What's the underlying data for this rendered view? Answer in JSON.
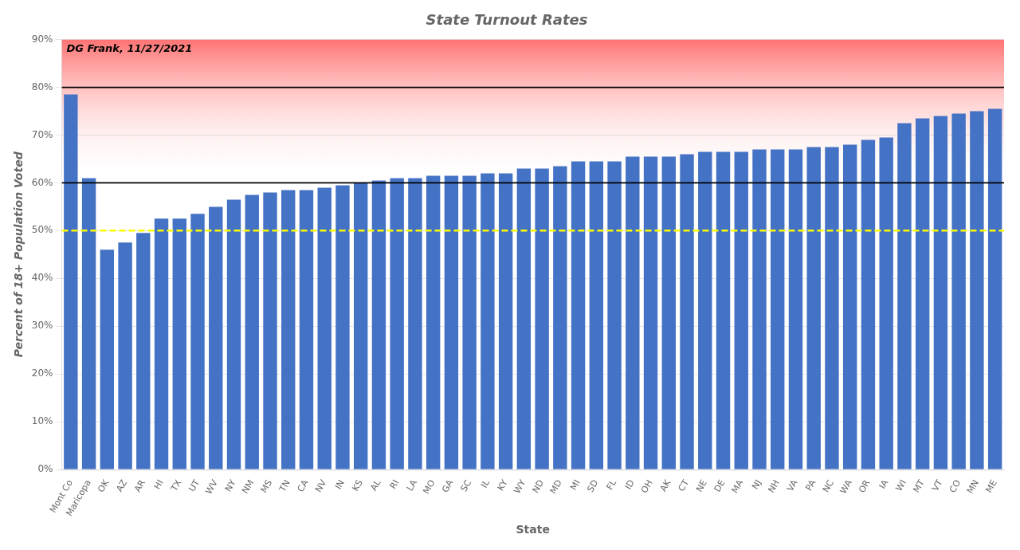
{
  "chart_data": {
    "type": "bar",
    "title": "State Turnout Rates",
    "xlabel": "State",
    "ylabel": "Percent of 18+ Population Voted",
    "annotation": "DG Frank, 11/27/2021",
    "categories": [
      "Mont Co",
      "Maricopa",
      "OK",
      "AZ",
      "AR",
      "HI",
      "TX",
      "UT",
      "WV",
      "NY",
      "NM",
      "MS",
      "TN",
      "CA",
      "NV",
      "IN",
      "KS",
      "AL",
      "RI",
      "LA",
      "MO",
      "GA",
      "SC",
      "IL",
      "KY",
      "WY",
      "ND",
      "MD",
      "MI",
      "SD",
      "FL",
      "ID",
      "OH",
      "AK",
      "CT",
      "NE",
      "DE",
      "MA",
      "NJ",
      "NH",
      "VA",
      "PA",
      "NC",
      "WA",
      "OR",
      "IA",
      "WI",
      "MT",
      "VT",
      "CO",
      "MN",
      "ME"
    ],
    "values": [
      78.5,
      61.0,
      46.0,
      47.5,
      49.5,
      52.5,
      52.5,
      53.5,
      55.0,
      56.5,
      57.5,
      58.0,
      58.5,
      58.5,
      59.0,
      59.5,
      60.0,
      60.5,
      61.0,
      61.0,
      61.5,
      61.5,
      61.5,
      62.0,
      62.0,
      63.0,
      63.0,
      63.5,
      64.5,
      64.5,
      64.5,
      65.5,
      65.5,
      65.5,
      66.0,
      66.5,
      66.5,
      66.5,
      67.0,
      67.0,
      67.0,
      67.5,
      67.5,
      68.0,
      69.0,
      69.5,
      72.5,
      73.5,
      74.0,
      74.5,
      75.0,
      75.5
    ],
    "color": "#4472C4",
    "ylim": [
      0,
      90
    ],
    "yticks": [
      {
        "value": 0,
        "label": "0%"
      },
      {
        "value": 10,
        "label": "10%"
      },
      {
        "value": 20,
        "label": "20%"
      },
      {
        "value": 30,
        "label": "30%"
      },
      {
        "value": 40,
        "label": "40%"
      },
      {
        "value": 50,
        "label": "50%"
      },
      {
        "value": 60,
        "label": "60%"
      },
      {
        "value": 70,
        "label": "70%"
      },
      {
        "value": 80,
        "label": "80%"
      },
      {
        "value": 90,
        "label": "90%"
      }
    ],
    "grid": true,
    "reference_lines": [
      {
        "value": 60,
        "color": "black"
      },
      {
        "value": 80,
        "color": "black"
      },
      {
        "value": 50,
        "color": "yellow",
        "line_style": "dashed"
      }
    ],
    "band": {
      "from": 60,
      "to": 90,
      "color": "red"
    }
  }
}
